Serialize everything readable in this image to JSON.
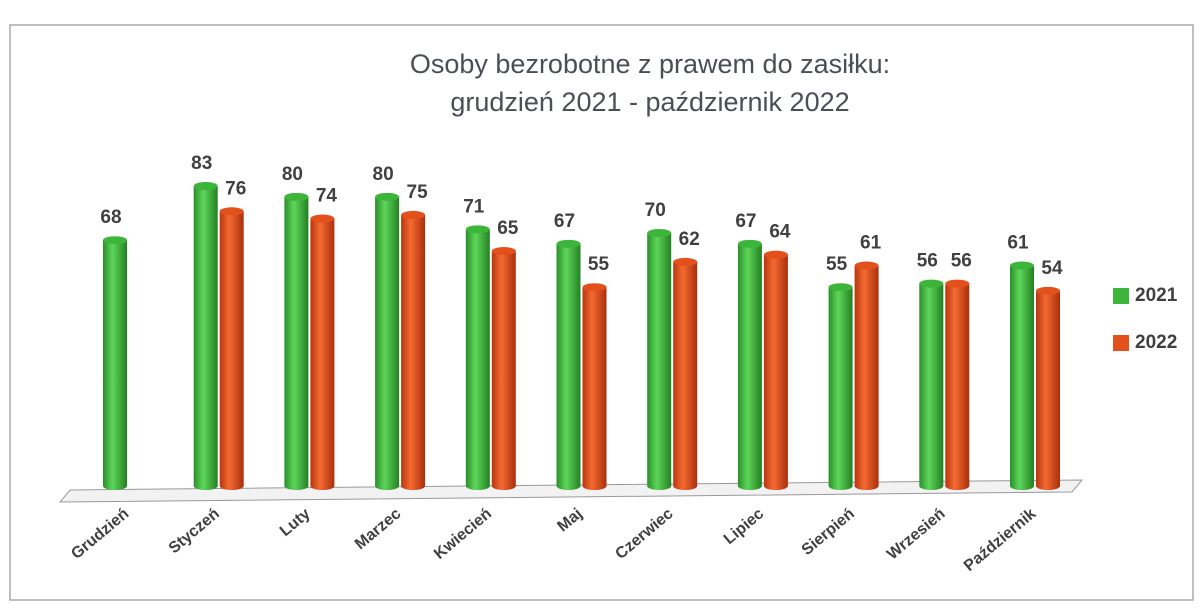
{
  "chart_data": {
    "type": "bar",
    "title": "Osoby bezrobotne z prawem do zasiłku:",
    "subtitle": "grudzień 2021 - październik 2022",
    "categories": [
      "Grudzień",
      "Styczeń",
      "Luty",
      "Marzec",
      "Kwiecień",
      "Maj",
      "Czerwiec",
      "Lipiec",
      "Sierpień",
      "Wrzesień",
      "Październik"
    ],
    "series": [
      {
        "name": "2021",
        "color": "#3db53a",
        "values": [
          68,
          83,
          80,
          80,
          71,
          67,
          70,
          67,
          55,
          56,
          61
        ]
      },
      {
        "name": "2022",
        "color": "#e4501b",
        "values": [
          null,
          76,
          74,
          75,
          65,
          55,
          62,
          64,
          61,
          56,
          54
        ]
      }
    ],
    "legend": "right"
  }
}
